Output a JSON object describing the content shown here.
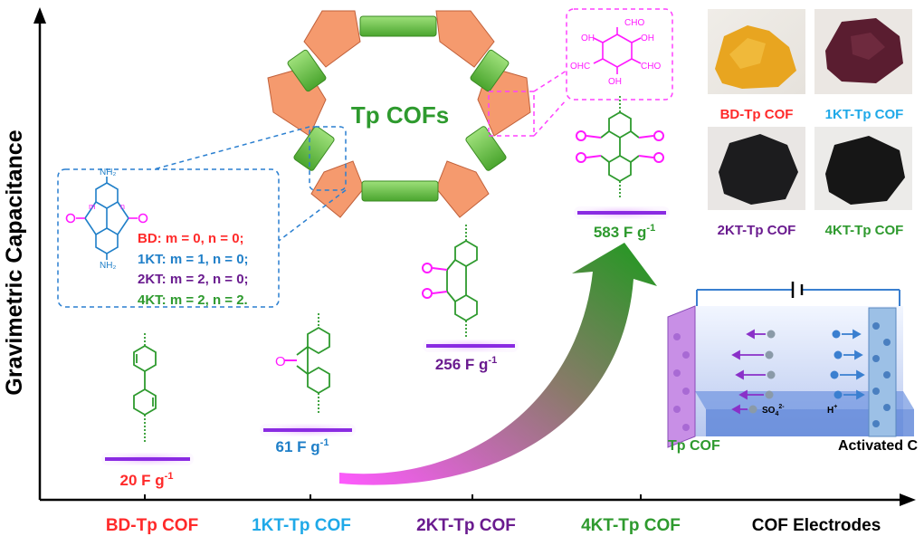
{
  "axis": {
    "y_label": "Gravimetric Capacitance",
    "x_label": "COF Electrodes"
  },
  "categories": [
    {
      "name": "BD-Tp COF",
      "color": "#ff2a2a"
    },
    {
      "name": "1KT-Tp COF",
      "color": "#1fa9e8"
    },
    {
      "name": "2KT-Tp COF",
      "color": "#6a1b8f"
    },
    {
      "name": "4KT-Tp COF",
      "color": "#2e9a2e"
    }
  ],
  "capacitance": [
    {
      "value": "20 F g",
      "sup": "-1",
      "color": "#ff2a2a"
    },
    {
      "value": "61 F g",
      "sup": "-1",
      "color": "#1f7fc8"
    },
    {
      "value": "256 F g",
      "sup": "-1",
      "color": "#6a1b8f"
    },
    {
      "value": "583 F g",
      "sup": "-1",
      "color": "#2e9a2e"
    }
  ],
  "framework_title": "Tp COFs",
  "legend": [
    {
      "text": "BD:  m = 0, n = 0;",
      "color": "#ff2a2a"
    },
    {
      "text": "1KT: m = 1, n = 0;",
      "color": "#1f7fc8"
    },
    {
      "text": "2KT: m = 2, n = 0;",
      "color": "#6a1b8f"
    },
    {
      "text": "4KT: m = 2, n = 2.",
      "color": "#2e9a2e"
    }
  ],
  "molecule_labels": {
    "nh2_top": "NH₂",
    "nh2_bottom": "NH₂",
    "cho_top": "CHO",
    "ohc_left": "OHC",
    "cho_right": "CHO",
    "oh_left": "OH",
    "oh_right": "OH",
    "oh_bottom": "OH",
    "m": "m",
    "n": "n"
  },
  "photos": [
    {
      "caption": "BD-Tp COF",
      "color": "#ff2a2a"
    },
    {
      "caption": "1KT-Tp COF",
      "color": "#1fa9e8"
    },
    {
      "caption": "2KT-Tp COF",
      "color": "#6a1b8f"
    },
    {
      "caption": "4KT-Tp COF",
      "color": "#2e9a2e"
    }
  ],
  "cell": {
    "left_label": "Tp COF",
    "right_label": "Activated C",
    "anion": "SO",
    "anion_sub": "4",
    "anion_sup": "2-",
    "cation": "H",
    "cation_sup": "+"
  }
}
